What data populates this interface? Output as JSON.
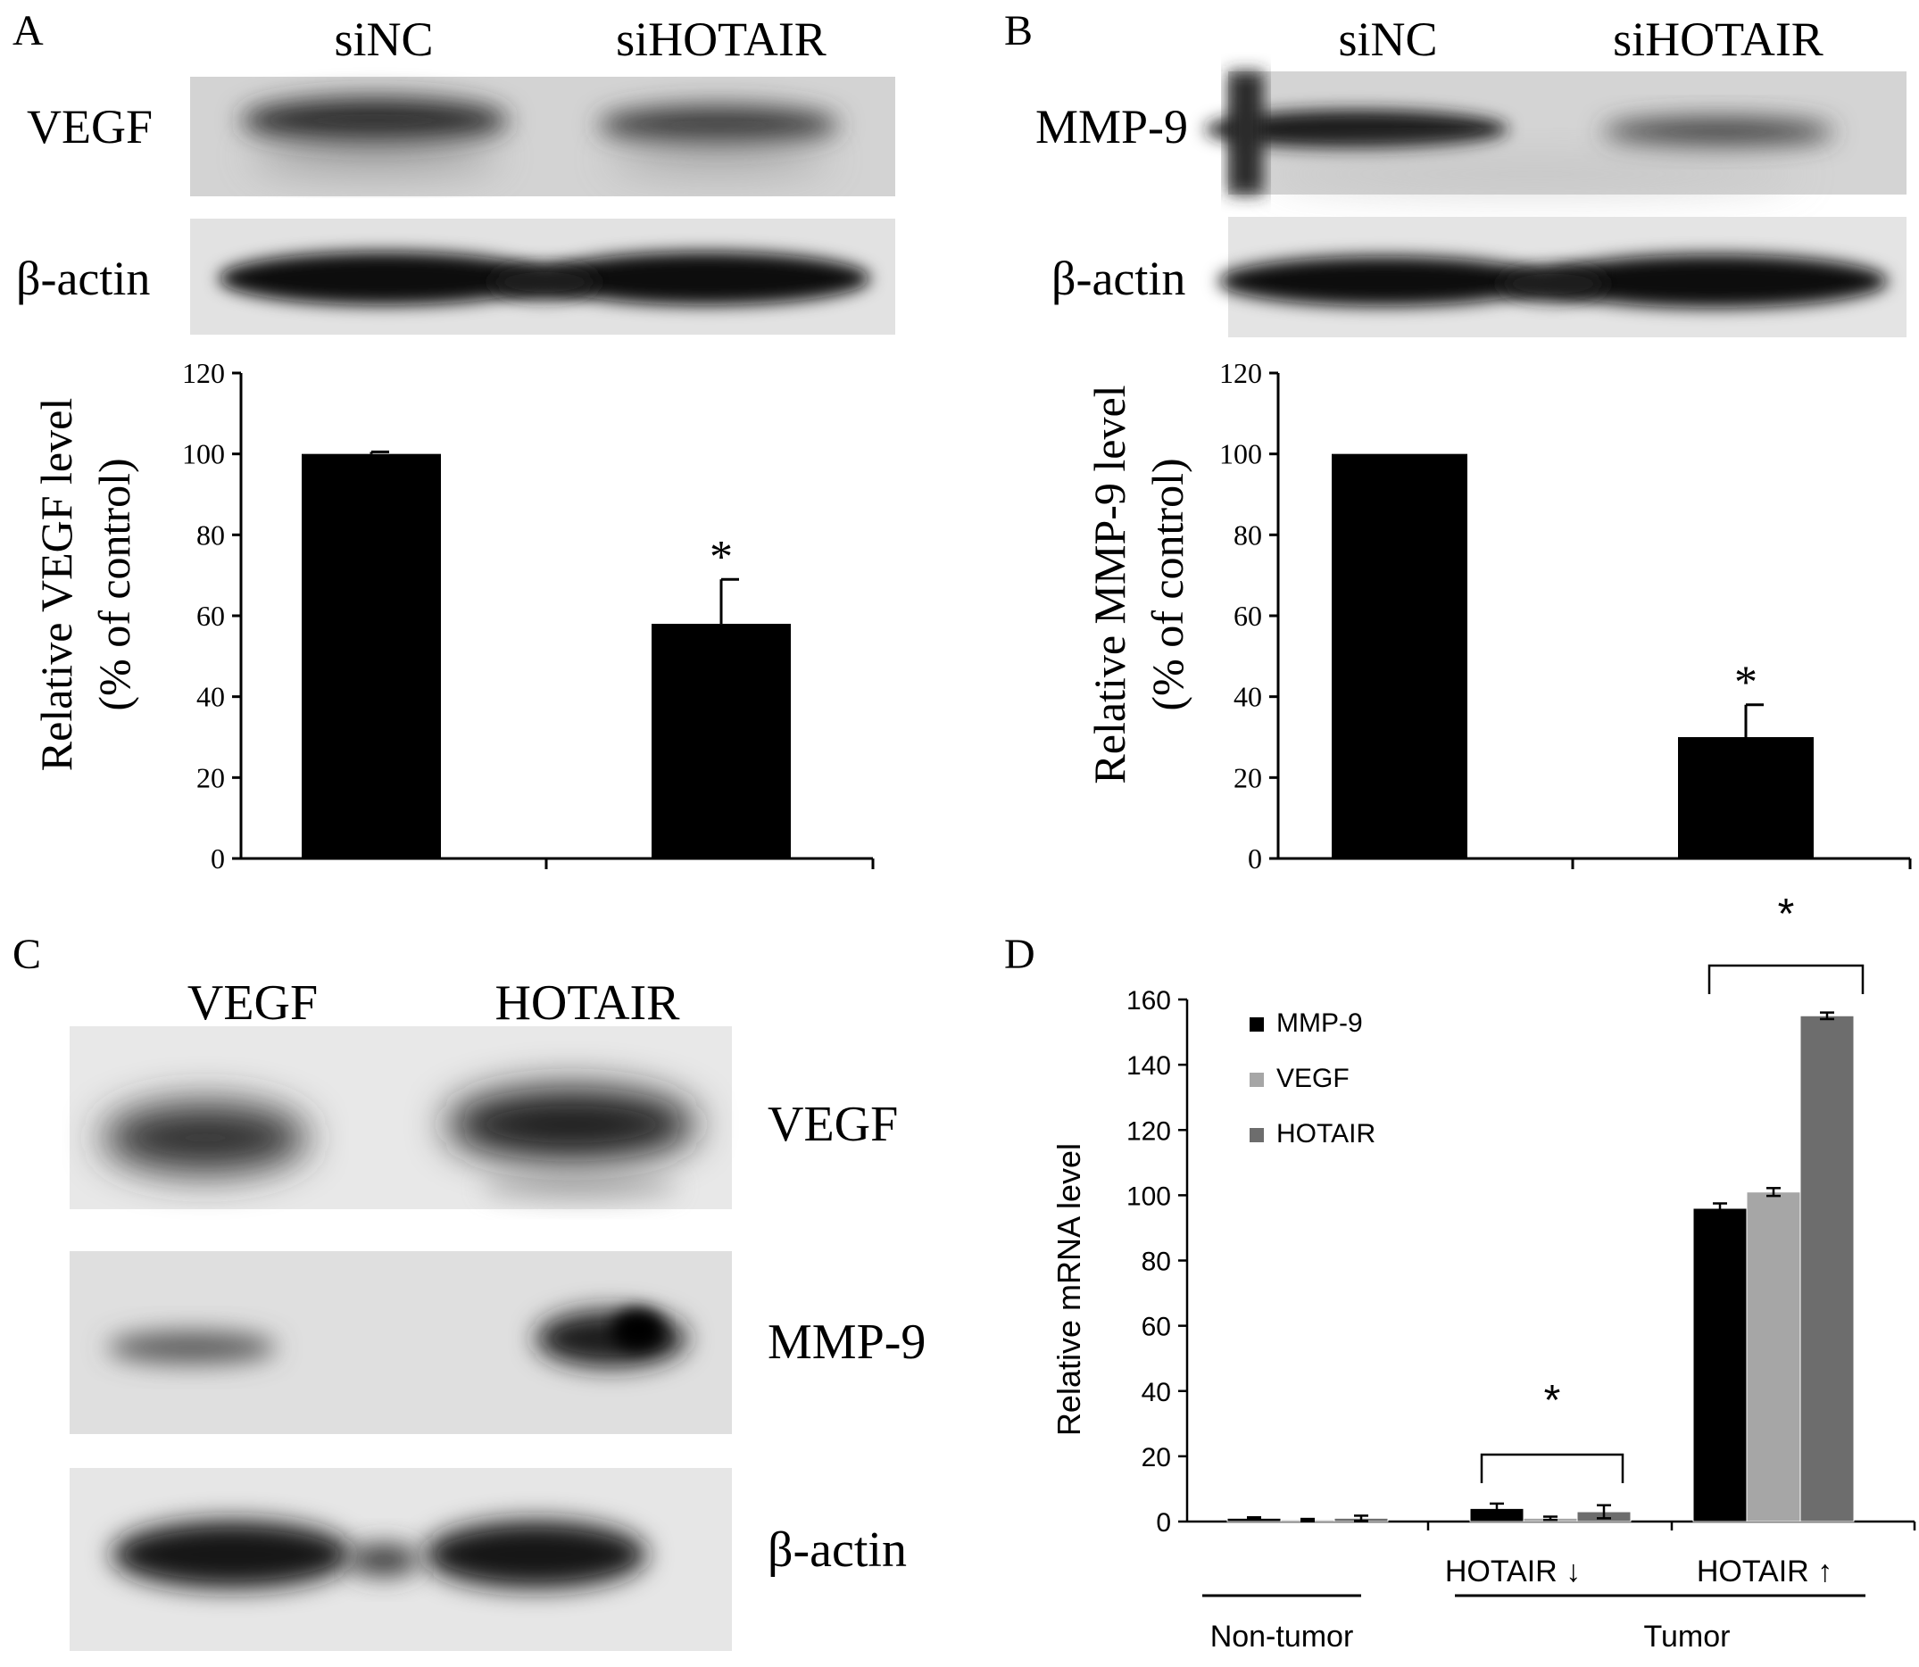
{
  "panels": {
    "a": {
      "letter": "A",
      "lanes": [
        "siNC",
        "siHOTAIR"
      ],
      "blots": [
        "VEGF",
        "β-actin"
      ],
      "ylabel1": "Relative VEGF level",
      "ylabel2": "(% of control)"
    },
    "b": {
      "letter": "B",
      "lanes": [
        "siNC",
        "siHOTAIR"
      ],
      "blots": [
        "MMP-9",
        "β-actin"
      ],
      "ylabel1": "Relative MMP-9 level",
      "ylabel2": "(% of control)"
    },
    "c": {
      "letter": "C",
      "lanes": [
        "VEGF",
        "HOTAIR"
      ],
      "blots": [
        "VEGF",
        "MMP-9",
        "β-actin"
      ]
    },
    "d": {
      "letter": "D",
      "ylabel": "Relative mRNA level",
      "group_labels": [
        "HOTAIR ↓",
        "HOTAIR ↑"
      ],
      "super_labels": [
        "Non-tumor",
        "Tumor"
      ]
    }
  },
  "colors": {
    "bar_black": "#000000",
    "mmp9": "#000000",
    "vegf": "#a6a6a6",
    "hotair": "#6d6d6d"
  },
  "chart_data": [
    {
      "type": "bar",
      "panel": "A",
      "categories": [
        "siNC",
        "siHOTAIR"
      ],
      "values": [
        100,
        58
      ],
      "errors": [
        0.5,
        11
      ],
      "significance": [
        "",
        "*"
      ],
      "ylim": [
        0,
        120
      ],
      "yticks": [
        0,
        20,
        40,
        60,
        80,
        100,
        120
      ],
      "ylabel": "Relative VEGF level (% of control)"
    },
    {
      "type": "bar",
      "panel": "B",
      "categories": [
        "siNC",
        "siHOTAIR"
      ],
      "values": [
        100,
        30
      ],
      "errors": [
        0,
        8
      ],
      "significance": [
        "",
        "*"
      ],
      "ylim": [
        0,
        120
      ],
      "yticks": [
        0,
        20,
        40,
        60,
        80,
        100,
        120
      ],
      "ylabel": "Relative MMP-9 level (% of control)"
    },
    {
      "type": "bar",
      "panel": "D",
      "categories": [
        "Non-tumor",
        "HOTAIR ↓",
        "HOTAIR ↑"
      ],
      "series": [
        {
          "name": "MMP-9",
          "values": [
            1,
            4,
            96
          ],
          "errors": [
            0.3,
            1.5,
            1.5
          ]
        },
        {
          "name": "VEGF",
          "values": [
            0.5,
            1,
            101
          ],
          "errors": [
            0.3,
            0.5,
            1.2
          ]
        },
        {
          "name": "HOTAIR",
          "values": [
            1,
            3,
            155
          ],
          "errors": [
            0.8,
            2,
            1
          ]
        }
      ],
      "significance_brackets": [
        {
          "category": "HOTAIR ↓",
          "label": "*"
        },
        {
          "category": "HOTAIR ↑",
          "label": "*"
        }
      ],
      "ylim": [
        0,
        160
      ],
      "yticks": [
        0,
        20,
        40,
        60,
        80,
        100,
        120,
        140,
        160
      ],
      "ylabel": "Relative mRNA level",
      "legend": "top-left"
    }
  ]
}
